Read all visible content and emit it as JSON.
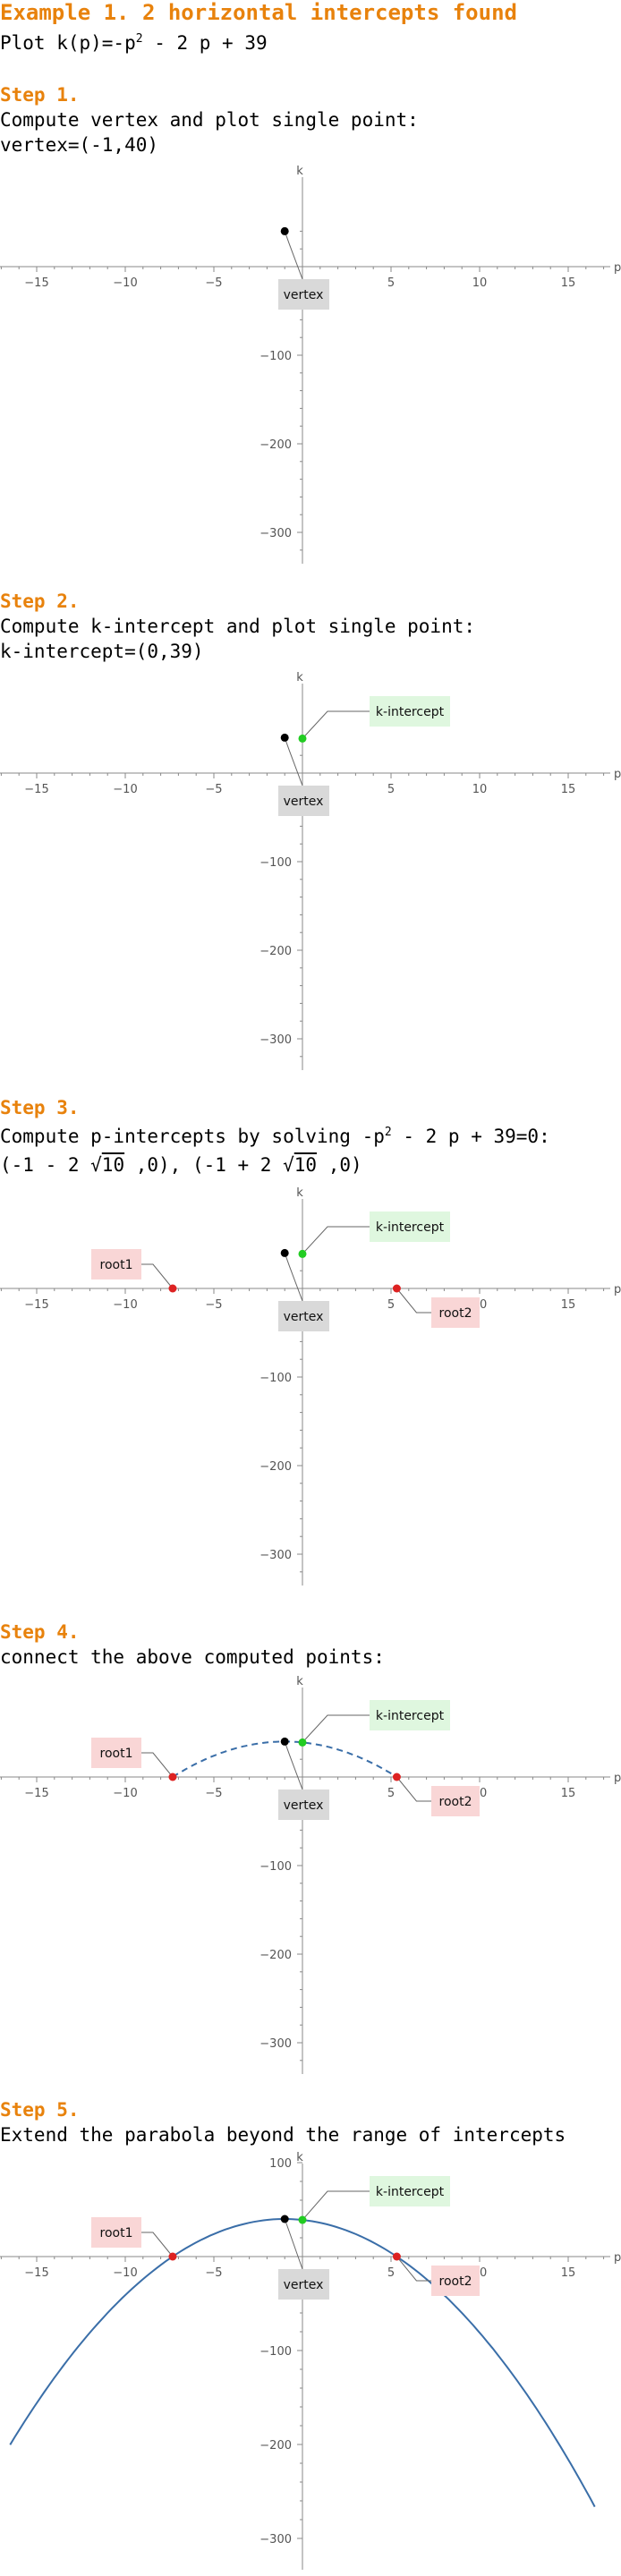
{
  "title": "Example 1. 2 horizontal intercepts found",
  "plot_line": "Plot k(p)=-p² - 2 p + 39",
  "steps": [
    {
      "heading": "Step 1.",
      "lines": [
        "Compute vertex and plot single point:",
        "vertex=(-1,40)"
      ]
    },
    {
      "heading": "Step 2.",
      "lines": [
        "Compute k-intercept and plot single point:",
        "k-intercept=(0,39)"
      ]
    },
    {
      "heading": "Step 3.",
      "lines": [
        "Compute p-intercepts by solving -p² - 2 p + 39=0:",
        "(-1 - 2 √10 ,0),  (-1 + 2 √10 ,0)"
      ]
    },
    {
      "heading": "Step 4.",
      "lines": [
        "connect the above computed points:"
      ]
    },
    {
      "heading": "Step 5.",
      "lines": [
        "Extend the parabola beyond the range of intercepts"
      ]
    }
  ],
  "labels": {
    "vertex": "vertex",
    "k_intercept": "k-intercept",
    "root1": "root1",
    "root2": "root2",
    "x_axis": "p",
    "y_axis": "k"
  },
  "colors": {
    "heading": "#e8820c",
    "vertex": "#000000",
    "k_intercept": "#22cc22",
    "root": "#dd2222",
    "curve": "#3a6ea8",
    "vertex_box": "#d9d9d9",
    "k_box": "#dff7df",
    "root_box": "#f9d6d6"
  },
  "chart_data": [
    {
      "type": "scatter",
      "xlabel": "p",
      "ylabel": "k",
      "xlim": [
        -17,
        17
      ],
      "ylim": [
        -330,
        40
      ],
      "x_ticks": [
        -15,
        -10,
        -5,
        5,
        10,
        15
      ],
      "y_ticks": [
        -100,
        -200,
        -300
      ],
      "series": [
        {
          "name": "vertex",
          "points": [
            [
              -1,
              40
            ]
          ]
        }
      ]
    },
    {
      "type": "scatter",
      "xlabel": "p",
      "ylabel": "k",
      "xlim": [
        -17,
        17
      ],
      "ylim": [
        -330,
        40
      ],
      "x_ticks": [
        -15,
        -10,
        -5,
        5,
        10,
        15
      ],
      "y_ticks": [
        -100,
        -200,
        -300
      ],
      "series": [
        {
          "name": "vertex",
          "points": [
            [
              -1,
              40
            ]
          ]
        },
        {
          "name": "k-intercept",
          "points": [
            [
              0,
              39
            ]
          ]
        }
      ]
    },
    {
      "type": "scatter",
      "xlabel": "p",
      "ylabel": "k",
      "xlim": [
        -17,
        17
      ],
      "ylim": [
        -330,
        40
      ],
      "x_ticks": [
        -15,
        -10,
        -5,
        5,
        10,
        15
      ],
      "y_ticks": [
        -100,
        -200,
        -300
      ],
      "series": [
        {
          "name": "vertex",
          "points": [
            [
              -1,
              40
            ]
          ]
        },
        {
          "name": "k-intercept",
          "points": [
            [
              0,
              39
            ]
          ]
        },
        {
          "name": "root1",
          "points": [
            [
              -7.3246,
              0
            ]
          ]
        },
        {
          "name": "root2",
          "points": [
            [
              5.3246,
              0
            ]
          ]
        }
      ]
    },
    {
      "type": "line",
      "xlabel": "p",
      "ylabel": "k",
      "xlim": [
        -17,
        17
      ],
      "ylim": [
        -330,
        40
      ],
      "x_ticks": [
        -15,
        -10,
        -5,
        5,
        10,
        15
      ],
      "y_ticks": [
        -100,
        -200,
        -300
      ],
      "series": [
        {
          "name": "vertex",
          "points": [
            [
              -1,
              40
            ]
          ]
        },
        {
          "name": "k-intercept",
          "points": [
            [
              0,
              39
            ]
          ]
        },
        {
          "name": "root1",
          "points": [
            [
              -7.3246,
              0
            ]
          ]
        },
        {
          "name": "root2",
          "points": [
            [
              5.3246,
              0
            ]
          ]
        }
      ],
      "curve": {
        "style": "dashed",
        "x_range": [
          -7.3246,
          5.3246
        ]
      }
    },
    {
      "type": "line",
      "xlabel": "p",
      "ylabel": "k",
      "xlim": [
        -17,
        17
      ],
      "ylim": [
        -300,
        100
      ],
      "x_ticks": [
        -15,
        -10,
        -5,
        5,
        10,
        15
      ],
      "y_ticks": [
        100,
        -100,
        -200,
        -300
      ],
      "series": [
        {
          "name": "vertex",
          "points": [
            [
              -1,
              40
            ]
          ]
        },
        {
          "name": "k-intercept",
          "points": [
            [
              0,
              39
            ]
          ]
        },
        {
          "name": "root1",
          "points": [
            [
              -7.3246,
              0
            ]
          ]
        },
        {
          "name": "root2",
          "points": [
            [
              5.3246,
              0
            ]
          ]
        }
      ],
      "curve": {
        "style": "solid",
        "x_range": [
          -16.5,
          16.5
        ]
      }
    }
  ]
}
